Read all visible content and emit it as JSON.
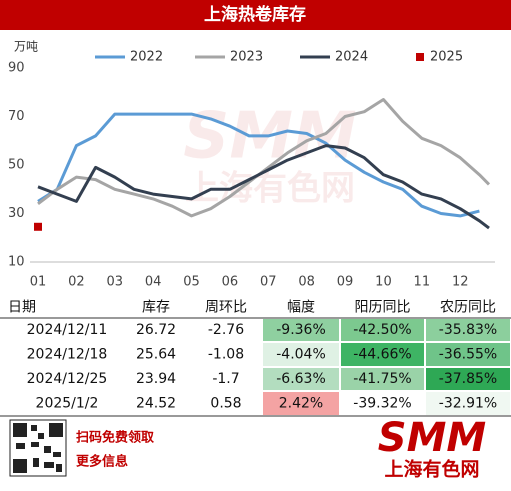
{
  "chart_data": {
    "type": "line",
    "title": "上海热卷库存",
    "y_label": "万吨",
    "x": [
      1,
      1.5,
      2,
      2.5,
      3,
      3.5,
      4,
      4.5,
      5,
      5.5,
      6,
      6.5,
      7,
      7.5,
      8,
      8.5,
      9,
      9.5,
      10,
      10.5,
      11,
      11.5,
      12,
      12.5,
      12.75
    ],
    "xlim": [
      1,
      12.75
    ],
    "xticks": [
      {
        "value": 1,
        "label": "01"
      },
      {
        "value": 2,
        "label": "02"
      },
      {
        "value": 3,
        "label": "03"
      },
      {
        "value": 4,
        "label": "04"
      },
      {
        "value": 5,
        "label": "05"
      },
      {
        "value": 6,
        "label": "06"
      },
      {
        "value": 7,
        "label": "07"
      },
      {
        "value": 8,
        "label": "08"
      },
      {
        "value": 9,
        "label": "09"
      },
      {
        "value": 10,
        "label": "10"
      },
      {
        "value": 11,
        "label": "11"
      },
      {
        "value": 12,
        "label": "12"
      }
    ],
    "ylim": [
      10,
      90
    ],
    "yticks": [
      10,
      30,
      50,
      70,
      90
    ],
    "series": [
      {
        "name": "2022",
        "color": "#5b9bd5",
        "values": [
          35,
          40,
          58,
          62,
          71,
          71,
          71,
          71,
          71,
          69,
          66,
          62,
          62,
          64,
          63,
          59,
          52,
          47,
          43,
          40,
          33,
          30,
          29,
          31,
          null
        ]
      },
      {
        "name": "2023",
        "color": "#a5a5a5",
        "values": [
          34,
          40,
          45,
          44,
          40,
          38,
          36,
          33,
          29,
          32,
          37,
          43,
          49,
          55,
          60,
          63,
          70,
          72,
          77,
          68,
          61,
          58,
          53,
          46,
          42
        ]
      },
      {
        "name": "2024",
        "color": "#333f50",
        "values": [
          41,
          38,
          35,
          49,
          45,
          40,
          38,
          37,
          36,
          40,
          40,
          44,
          48,
          52,
          55,
          58,
          57,
          53,
          46,
          43,
          38,
          36,
          32,
          27,
          24
        ]
      },
      {
        "name": "2025",
        "color": "#c00000",
        "marker": "square",
        "values": [
          24.52,
          null,
          null,
          null,
          null,
          null,
          null,
          null,
          null,
          null,
          null,
          null,
          null,
          null,
          null,
          null,
          null,
          null,
          null,
          null,
          null,
          null,
          null,
          null,
          null
        ]
      }
    ]
  },
  "watermark": {
    "logo": "SMM",
    "name": "上海有色网"
  },
  "table": {
    "columns": [
      "日期",
      "库存",
      "周环比",
      "幅度",
      "阳历同比",
      "农历同比"
    ],
    "rows": [
      [
        "2024/12/11",
        "26.72",
        "-2.76",
        "-9.36%",
        "-42.50%",
        "-35.83%"
      ],
      [
        "2024/12/18",
        "25.64",
        "-1.08",
        "-4.04%",
        "-44.66%",
        "-36.55%"
      ],
      [
        "2024/12/25",
        "23.94",
        "-1.7",
        "-6.63%",
        "-41.75%",
        "-37.85%"
      ],
      [
        "2025/1/2",
        "24.52",
        "0.58",
        "2.42%",
        "-39.32%",
        "-32.91%"
      ]
    ]
  },
  "footer": {
    "line1": "扫码免费领取",
    "line2": "更多信息",
    "logo": "SMM",
    "brand": "上海有色网"
  }
}
